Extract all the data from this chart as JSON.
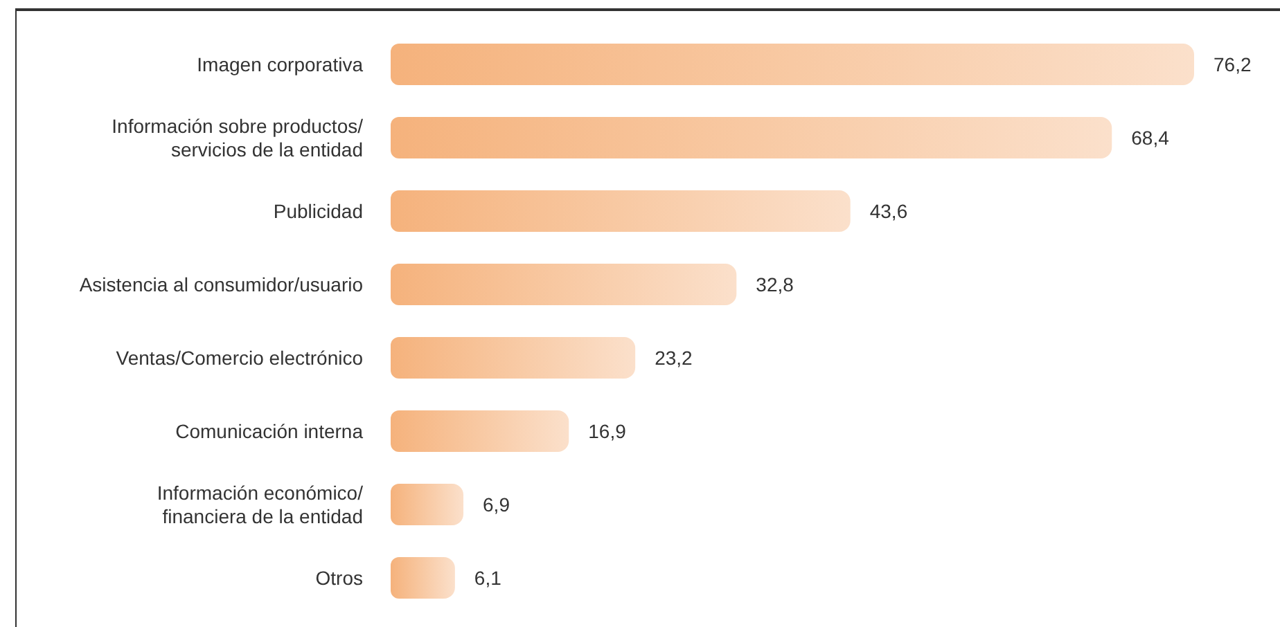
{
  "chart_data": {
    "type": "bar",
    "orientation": "horizontal",
    "categories": [
      "Imagen corporativa",
      "Información sobre productos/\nservicios de la entidad",
      "Publicidad",
      "Asistencia al consumidor/usuario",
      "Ventas/Comercio electrónico",
      "Comunicación interna",
      "Información económico/\nfinanciera de la entidad",
      "Otros"
    ],
    "values": [
      76.2,
      68.4,
      43.6,
      32.8,
      23.2,
      16.9,
      6.9,
      6.1
    ],
    "color": "#f5b27c",
    "value_labels": [
      "76,2",
      "68,4",
      "43,6",
      "32,8",
      "23,2",
      "16,9",
      "6,9",
      "6,1"
    ]
  }
}
